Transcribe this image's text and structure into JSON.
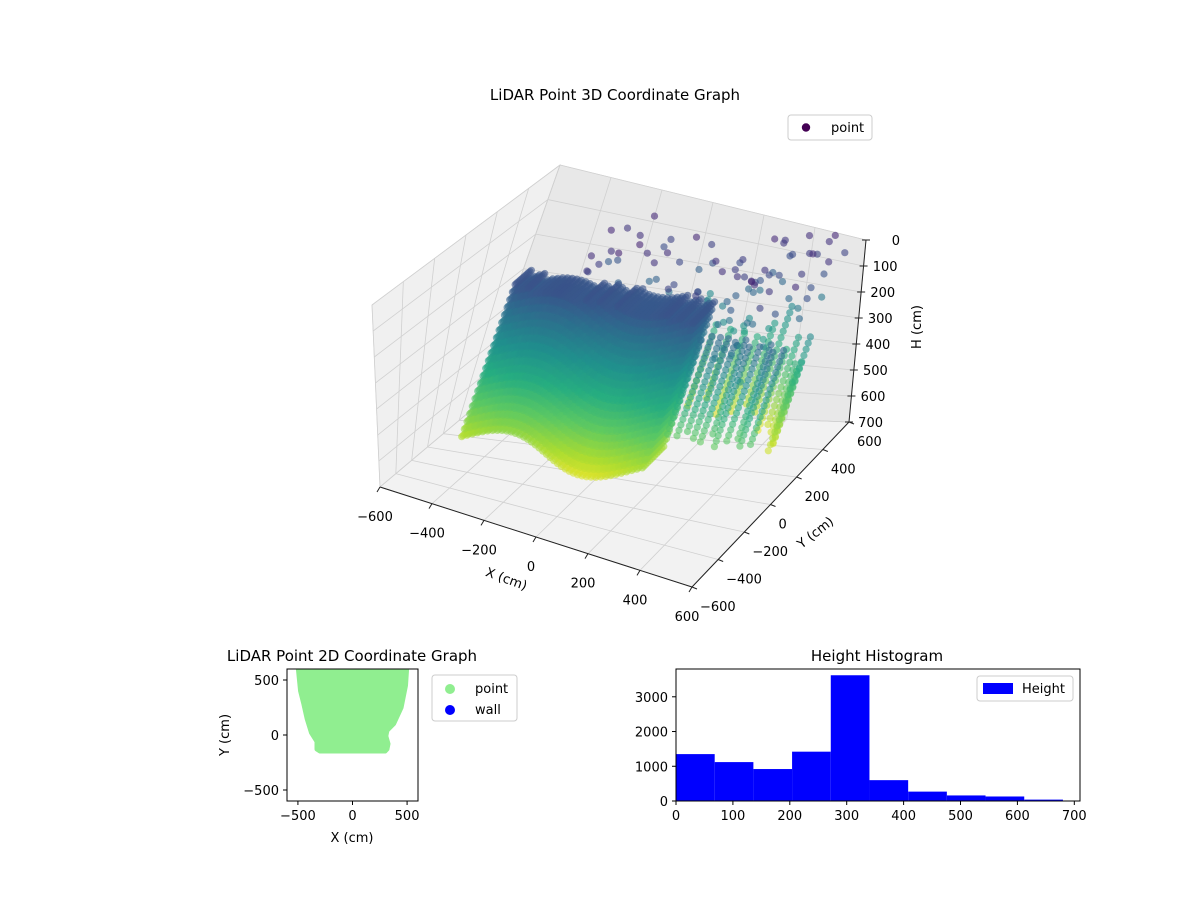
{
  "figure": {
    "background": "#ffffff",
    "colors": {
      "point3d_legend": "#440154",
      "point2d": "#90ee90",
      "wall": "#0000ff",
      "histogram": "#0000ff"
    }
  },
  "chart_data": [
    {
      "type": "scatter",
      "projection": "3d",
      "title": "LiDAR Point 3D Coordinate Graph",
      "xlabel": "X (cm)",
      "ylabel": "Y (cm)",
      "zlabel": "H (cm)",
      "xlim": [
        -600,
        600
      ],
      "ylim": [
        -600,
        600
      ],
      "zlim": [
        0,
        700
      ],
      "z_inverted": true,
      "xticks": [
        -600,
        -400,
        -200,
        0,
        200,
        400,
        600
      ],
      "yticks": [
        -600,
        -400,
        -200,
        0,
        200,
        400,
        600
      ],
      "zticks": [
        0,
        100,
        200,
        300,
        400,
        500,
        600,
        700
      ],
      "xtick_labels": [
        "−600",
        "−400",
        "−200",
        "0",
        "200",
        "400",
        "600"
      ],
      "ytick_labels": [
        "−600",
        "−400",
        "−200",
        "0",
        "200",
        "400",
        "600"
      ],
      "ztick_labels": [
        "0",
        "100",
        "200",
        "300",
        "400",
        "500",
        "600",
        "700"
      ],
      "colormap": "viridis",
      "legend": {
        "entries": [
          "point"
        ],
        "placement": "top-right"
      },
      "grid": true,
      "series": [
        {
          "name": "point",
          "shape": "room-shell",
          "x_range": [
            -500,
            500
          ],
          "y_range": [
            -150,
            600
          ],
          "h_range": [
            0,
            700
          ]
        }
      ]
    },
    {
      "type": "scatter",
      "title": "LiDAR Point 2D Coordinate Graph",
      "xlabel": "X (cm)",
      "ylabel": "Y (cm)",
      "xlim": [
        -600,
        600
      ],
      "ylim": [
        -600,
        600
      ],
      "xticks": [
        -500,
        0,
        500
      ],
      "yticks": [
        -500,
        0,
        500
      ],
      "xtick_labels": [
        "−500",
        "0",
        "500"
      ],
      "ytick_labels": [
        "−500",
        "0",
        "500"
      ],
      "legend": {
        "entries": [
          "point",
          "wall"
        ],
        "placement": "outside-right"
      },
      "series": [
        {
          "name": "point",
          "color": "#90ee90",
          "outline": [
            [
              -500,
              600
            ],
            [
              -480,
              400
            ],
            [
              -450,
              280
            ],
            [
              -420,
              150
            ],
            [
              -380,
              20
            ],
            [
              -330,
              -60
            ],
            [
              -330,
              -130
            ],
            [
              -300,
              -150
            ],
            [
              300,
              -150
            ],
            [
              320,
              -130
            ],
            [
              330,
              -80
            ],
            [
              310,
              -10
            ],
            [
              320,
              40
            ],
            [
              380,
              100
            ],
            [
              450,
              250
            ],
            [
              490,
              450
            ],
            [
              500,
              600
            ]
          ]
        },
        {
          "name": "wall",
          "color": "#0000ff",
          "points": []
        }
      ]
    },
    {
      "type": "bar",
      "subtype": "histogram",
      "title": "Height Histogram",
      "xlabel": "",
      "ylabel": "",
      "xlim": [
        0,
        710
      ],
      "ylim": [
        0,
        3800
      ],
      "xticks": [
        0,
        100,
        200,
        300,
        400,
        500,
        600,
        700
      ],
      "yticks": [
        0,
        1000,
        2000,
        3000
      ],
      "legend": {
        "entries": [
          "Height"
        ],
        "placement": "top-right"
      },
      "bin_edges": [
        0,
        68,
        136,
        204,
        272,
        340,
        408,
        476,
        544,
        612,
        680
      ],
      "values": [
        1350,
        1120,
        920,
        1420,
        3620,
        600,
        270,
        160,
        130,
        40
      ],
      "series": [
        {
          "name": "Height",
          "color": "#0000ff"
        }
      ]
    }
  ]
}
